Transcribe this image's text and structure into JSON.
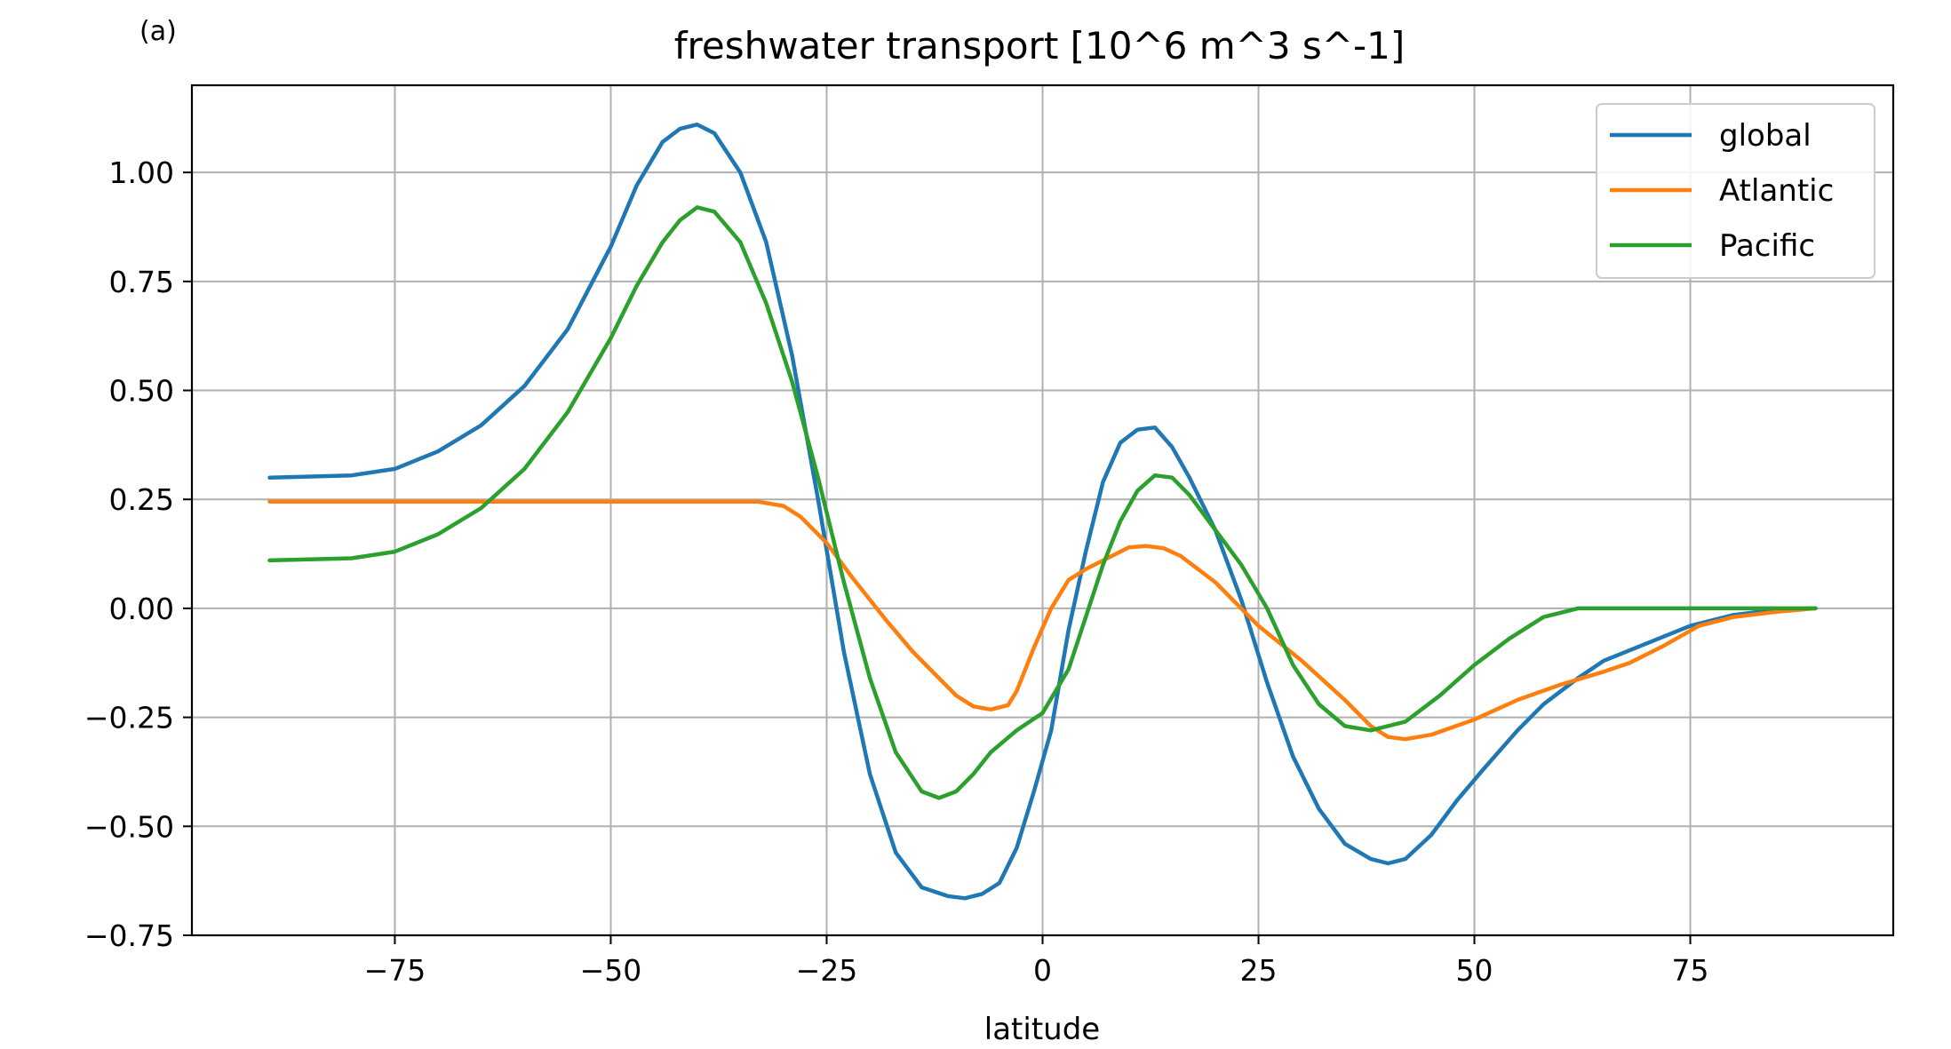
{
  "panel_label": "(a)",
  "chart_data": {
    "type": "line",
    "title": "freshwater transport [10^6 m^3 s^-1]",
    "xlabel": "latitude",
    "ylabel": "",
    "xlim": [
      -98.5,
      98.5
    ],
    "ylim": [
      -0.75,
      1.2
    ],
    "xticks": [
      -75,
      -50,
      -25,
      0,
      25,
      50,
      75
    ],
    "xtick_labels": [
      "−75",
      "−50",
      "−25",
      "0",
      "25",
      "50",
      "75"
    ],
    "yticks": [
      -0.75,
      -0.5,
      -0.25,
      0.0,
      0.25,
      0.5,
      0.75,
      1.0
    ],
    "ytick_labels": [
      "−0.75",
      "−0.50",
      "−0.25",
      "0.00",
      "0.25",
      "0.50",
      "0.75",
      "1.00"
    ],
    "grid": true,
    "legend_position": "top-right",
    "series": [
      {
        "name": "global",
        "color": "#1f77b4",
        "x": [
          -89.5,
          -80,
          -75,
          -70,
          -65,
          -60,
          -55,
          -50,
          -47,
          -44,
          -42,
          -40,
          -38,
          -35,
          -32,
          -29,
          -26,
          -23,
          -20,
          -17,
          -14,
          -11,
          -9,
          -7,
          -5,
          -3,
          -1,
          1,
          3,
          5,
          7,
          9,
          11,
          13,
          15,
          17,
          20,
          23,
          26,
          29,
          32,
          35,
          38,
          40,
          42,
          45,
          48,
          51,
          55,
          58,
          62,
          65,
          70,
          75,
          80,
          85,
          89.5
        ],
        "y": [
          0.3,
          0.305,
          0.32,
          0.36,
          0.42,
          0.51,
          0.64,
          0.83,
          0.97,
          1.07,
          1.1,
          1.11,
          1.09,
          1.0,
          0.84,
          0.58,
          0.25,
          -0.1,
          -0.38,
          -0.56,
          -0.64,
          -0.66,
          -0.665,
          -0.655,
          -0.63,
          -0.55,
          -0.42,
          -0.28,
          -0.05,
          0.13,
          0.29,
          0.38,
          0.41,
          0.415,
          0.37,
          0.3,
          0.18,
          0.02,
          -0.17,
          -0.34,
          -0.46,
          -0.54,
          -0.575,
          -0.585,
          -0.575,
          -0.52,
          -0.44,
          -0.37,
          -0.28,
          -0.22,
          -0.16,
          -0.12,
          -0.08,
          -0.04,
          -0.015,
          -0.003,
          0.0
        ]
      },
      {
        "name": "Atlantic",
        "color": "#ff7f0e",
        "x": [
          -89.5,
          -80,
          -60,
          -40,
          -33,
          -30,
          -28,
          -25,
          -22,
          -18,
          -15,
          -10,
          -8,
          -6,
          -4,
          -3,
          -1,
          1,
          3,
          5,
          8,
          10,
          12,
          14,
          16,
          20,
          25,
          30,
          35,
          38,
          40,
          42,
          45,
          50,
          55,
          60,
          65,
          68,
          72,
          76,
          80,
          85,
          89.5
        ],
        "y": [
          0.245,
          0.245,
          0.245,
          0.245,
          0.245,
          0.235,
          0.21,
          0.15,
          0.07,
          -0.03,
          -0.1,
          -0.2,
          -0.225,
          -0.232,
          -0.222,
          -0.19,
          -0.09,
          0.0,
          0.065,
          0.09,
          0.12,
          0.14,
          0.143,
          0.138,
          0.12,
          0.06,
          -0.04,
          -0.12,
          -0.21,
          -0.27,
          -0.295,
          -0.3,
          -0.29,
          -0.255,
          -0.21,
          -0.175,
          -0.145,
          -0.125,
          -0.085,
          -0.04,
          -0.02,
          -0.008,
          0.0
        ]
      },
      {
        "name": "Pacific",
        "color": "#2ca02c",
        "x": [
          -89.5,
          -80,
          -75,
          -70,
          -65,
          -60,
          -55,
          -50,
          -47,
          -44,
          -42,
          -40,
          -38,
          -35,
          -32,
          -29,
          -26,
          -23,
          -20,
          -17,
          -14,
          -12,
          -10,
          -8,
          -6,
          -3,
          0,
          3,
          5,
          7,
          9,
          11,
          13,
          15,
          17,
          20,
          23,
          26,
          29,
          32,
          35,
          38,
          42,
          46,
          50,
          54,
          58,
          62,
          65,
          70,
          75,
          80,
          85,
          89.5
        ],
        "y": [
          0.11,
          0.115,
          0.13,
          0.17,
          0.23,
          0.32,
          0.45,
          0.62,
          0.74,
          0.84,
          0.89,
          0.92,
          0.91,
          0.84,
          0.7,
          0.52,
          0.3,
          0.06,
          -0.16,
          -0.33,
          -0.42,
          -0.435,
          -0.42,
          -0.38,
          -0.33,
          -0.28,
          -0.24,
          -0.14,
          -0.02,
          0.1,
          0.2,
          0.27,
          0.305,
          0.3,
          0.26,
          0.18,
          0.1,
          0.0,
          -0.13,
          -0.22,
          -0.27,
          -0.28,
          -0.26,
          -0.2,
          -0.13,
          -0.07,
          -0.02,
          0.0,
          0.0,
          0.0,
          0.0,
          0.0,
          0.0,
          0.0
        ]
      }
    ]
  }
}
